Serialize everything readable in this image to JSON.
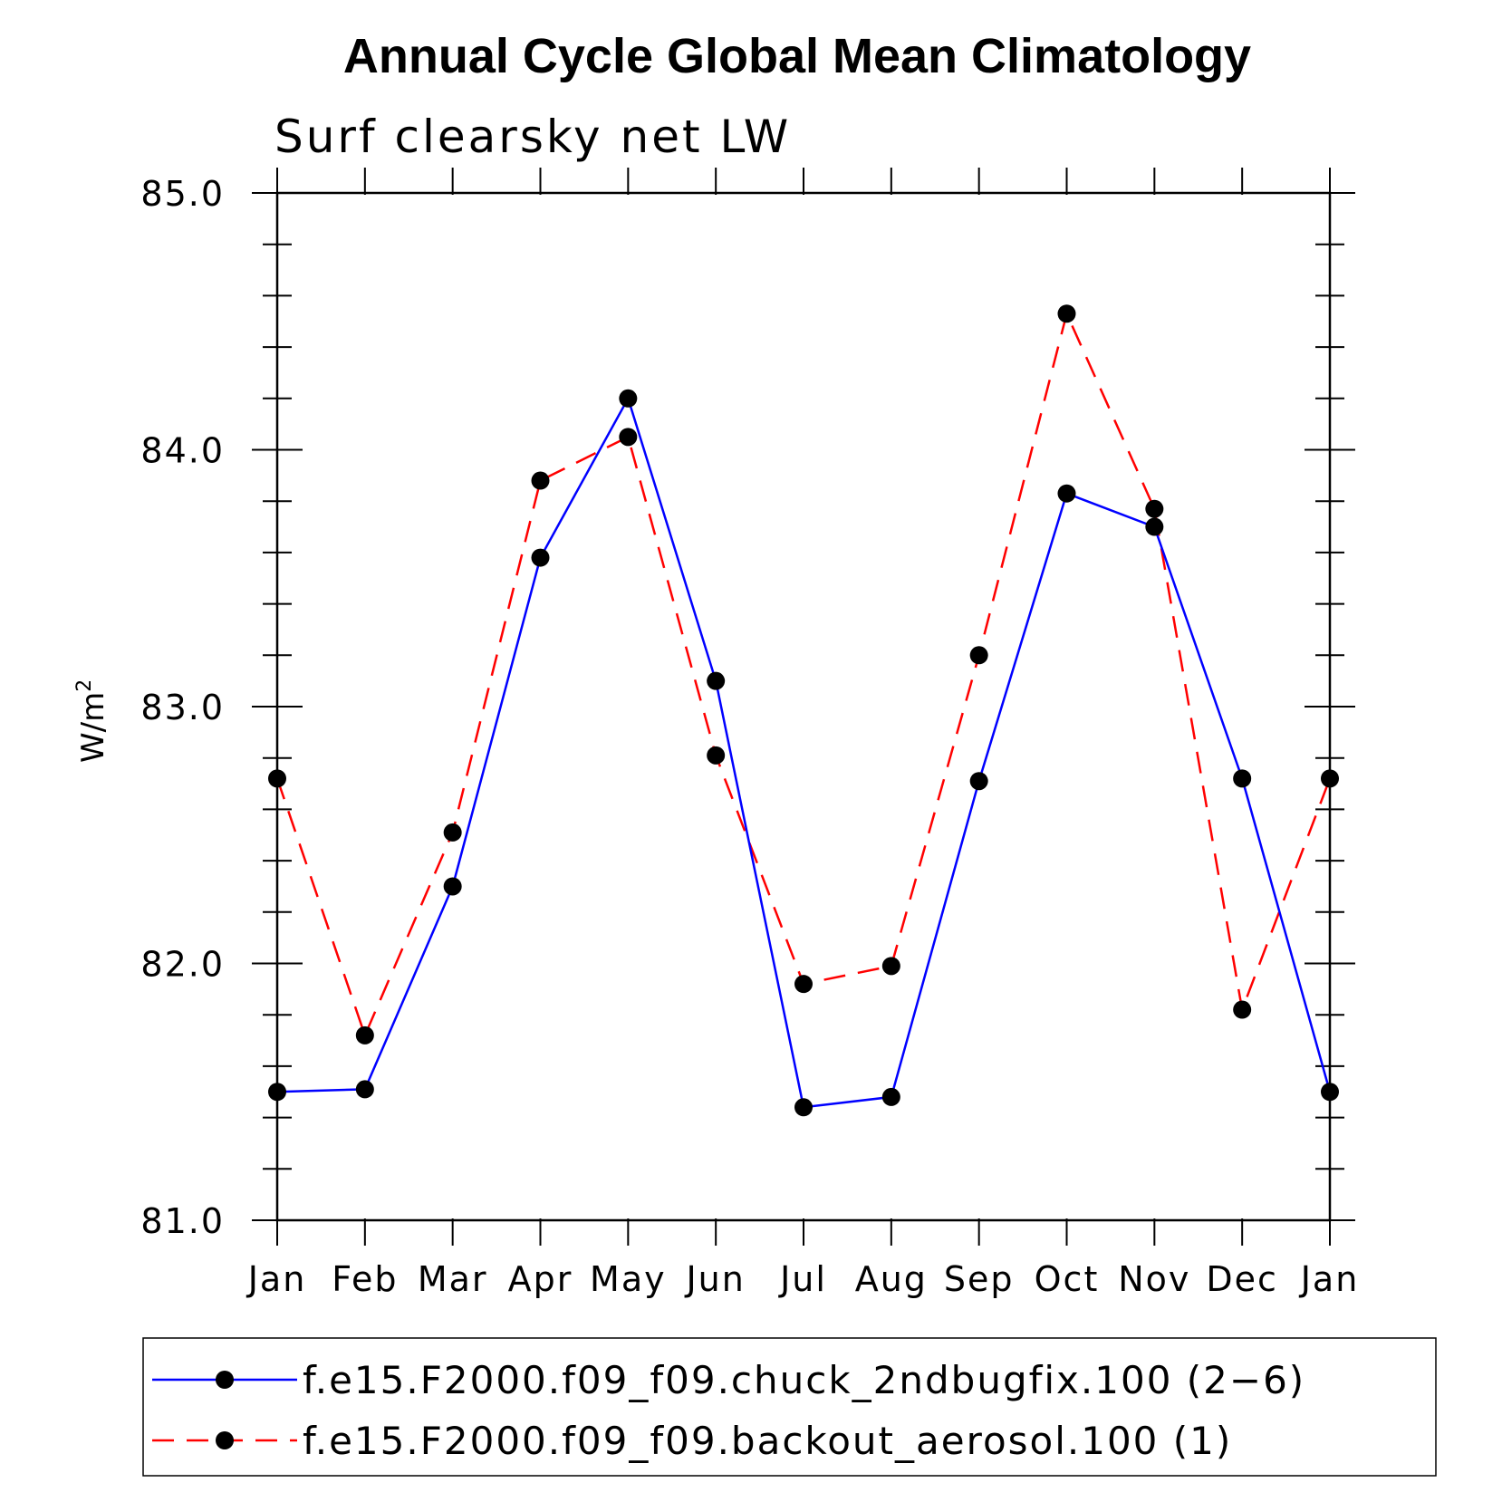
{
  "chart_data": {
    "type": "line",
    "title": "Annual Cycle Global Mean Climatology",
    "subtitle": "Surf clearsky net LW",
    "ylabel": "W/m",
    "ylabel_superscript": "2",
    "ylim": [
      81.0,
      85.0
    ],
    "y_ticks": [
      "81.0",
      "82.0",
      "83.0",
      "84.0",
      "85.0"
    ],
    "categories": [
      "Jan",
      "Feb",
      "Mar",
      "Apr",
      "May",
      "Jun",
      "Jul",
      "Aug",
      "Sep",
      "Oct",
      "Nov",
      "Dec",
      "Jan"
    ],
    "series": [
      {
        "name": "f.e15.F2000.f09_f09.chuck_2ndbugfix.100 (2−6)",
        "color": "#0000ff",
        "line_style": "solid",
        "marker": "filled-circle",
        "values": [
          81.5,
          81.51,
          82.3,
          83.58,
          84.2,
          83.1,
          81.44,
          81.48,
          82.71,
          83.83,
          83.7,
          82.72,
          81.5
        ]
      },
      {
        "name": "f.e15.F2000.f09_f09.backout_aerosol.100 (1)",
        "color": "#ff0000",
        "line_style": "dashed",
        "marker": "filled-circle",
        "values": [
          82.72,
          81.72,
          82.51,
          83.88,
          84.05,
          82.81,
          81.92,
          81.99,
          83.2,
          84.53,
          83.77,
          81.82,
          82.72
        ]
      }
    ],
    "grid": false,
    "legend_position": "bottom"
  }
}
